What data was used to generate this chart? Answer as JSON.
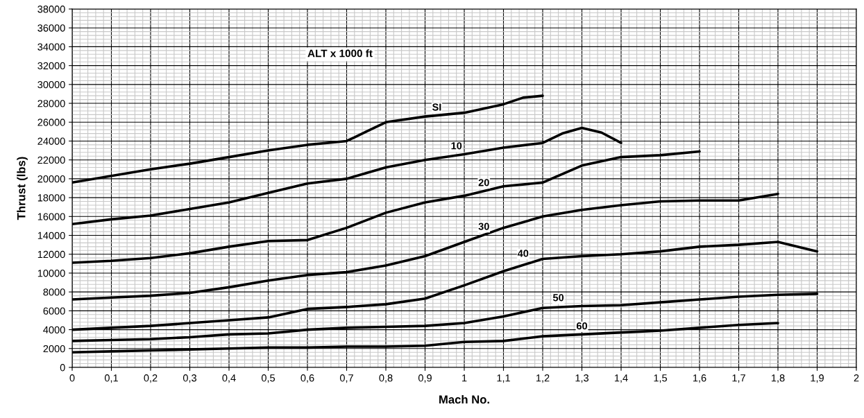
{
  "chart_data": {
    "type": "line",
    "xlabel": "Mach No.",
    "ylabel": "Thrust (lbs)",
    "xlim": [
      0,
      2
    ],
    "ylim": [
      0,
      38000
    ],
    "xticks": [
      0,
      {
        "value": 0.1,
        "label": "0,1"
      },
      {
        "value": 0.2,
        "label": "0,2"
      },
      {
        "value": 0.3,
        "label": "0,3"
      },
      {
        "value": 0.4,
        "label": "0,4"
      },
      {
        "value": 0.5,
        "label": "0,5"
      },
      {
        "value": 0.6,
        "label": "0,6"
      },
      {
        "value": 0.7,
        "label": "0,7"
      },
      {
        "value": 0.8,
        "label": "0,8"
      },
      {
        "value": 0.9,
        "label": "0,9"
      },
      1,
      {
        "value": 1.1,
        "label": "1,1"
      },
      {
        "value": 1.2,
        "label": "1,2"
      },
      {
        "value": 1.3,
        "label": "1,3"
      },
      {
        "value": 1.4,
        "label": "1,4"
      },
      {
        "value": 1.5,
        "label": "1,5"
      },
      {
        "value": 1.6,
        "label": "1,6"
      },
      {
        "value": 1.7,
        "label": "1,7"
      },
      {
        "value": 1.8,
        "label": "1,8"
      },
      {
        "value": 1.9,
        "label": "1,9"
      },
      2
    ],
    "yticks": [
      0,
      2000,
      4000,
      6000,
      8000,
      10000,
      12000,
      14000,
      16000,
      18000,
      20000,
      22000,
      24000,
      26000,
      28000,
      30000,
      32000,
      34000,
      36000,
      38000
    ],
    "grid": true,
    "marker": "none",
    "line_style": "solid",
    "series": [
      {
        "color": "#000000",
        "x": [
          0,
          0.1,
          0.2,
          0.3,
          0.4,
          0.5,
          0.6,
          0.7,
          0.75,
          0.8,
          0.9,
          1.0,
          1.1,
          1.15,
          1.2
        ],
        "values": [
          19600,
          20300,
          21000,
          21600,
          22300,
          23000,
          23600,
          24000,
          25000,
          26000,
          26600,
          27000,
          27900,
          28600,
          28800
        ]
      },
      {
        "color": "#000000",
        "x": [
          0,
          0.1,
          0.2,
          0.3,
          0.4,
          0.5,
          0.6,
          0.7,
          0.8,
          0.9,
          1.0,
          1.1,
          1.2,
          1.25,
          1.3,
          1.35,
          1.4
        ],
        "values": [
          15200,
          15700,
          16100,
          16800,
          17500,
          18500,
          19500,
          20000,
          21200,
          22000,
          22600,
          23300,
          23800,
          24800,
          25400,
          24900,
          23800
        ]
      },
      {
        "color": "#000000",
        "x": [
          0,
          0.1,
          0.2,
          0.3,
          0.4,
          0.5,
          0.6,
          0.7,
          0.8,
          0.9,
          1.0,
          1.1,
          1.2,
          1.3,
          1.4,
          1.5,
          1.6
        ],
        "values": [
          11100,
          11300,
          11600,
          12100,
          12800,
          13400,
          13500,
          14800,
          16400,
          17500,
          18200,
          19200,
          19600,
          21400,
          22300,
          22500,
          22900
        ]
      },
      {
        "color": "#000000",
        "x": [
          0,
          0.1,
          0.2,
          0.3,
          0.4,
          0.5,
          0.6,
          0.7,
          0.8,
          0.9,
          1.0,
          1.1,
          1.2,
          1.3,
          1.4,
          1.5,
          1.6,
          1.7,
          1.8
        ],
        "values": [
          7200,
          7400,
          7600,
          7900,
          8500,
          9200,
          9800,
          10100,
          10800,
          11800,
          13300,
          14800,
          16000,
          16700,
          17200,
          17600,
          17700,
          17700,
          18400
        ]
      },
      {
        "color": "#000000",
        "x": [
          0,
          0.1,
          0.2,
          0.3,
          0.4,
          0.5,
          0.6,
          0.7,
          0.8,
          0.9,
          1.0,
          1.1,
          1.2,
          1.3,
          1.4,
          1.5,
          1.6,
          1.7,
          1.8,
          1.9
        ],
        "values": [
          4000,
          4200,
          4400,
          4700,
          5000,
          5300,
          6200,
          6400,
          6700,
          7300,
          8700,
          10200,
          11500,
          11800,
          12000,
          12300,
          12800,
          13000,
          13300,
          12300
        ]
      },
      {
        "color": "#000000",
        "x": [
          0,
          0.1,
          0.2,
          0.3,
          0.4,
          0.5,
          0.6,
          0.7,
          0.8,
          0.9,
          1.0,
          1.1,
          1.2,
          1.3,
          1.4,
          1.5,
          1.6,
          1.7,
          1.8,
          1.9
        ],
        "values": [
          2800,
          2900,
          3000,
          3200,
          3500,
          3600,
          4000,
          4200,
          4300,
          4400,
          4700,
          5400,
          6300,
          6500,
          6600,
          6900,
          7200,
          7500,
          7700,
          7800
        ]
      },
      {
        "color": "#000000",
        "x": [
          0,
          0.1,
          0.2,
          0.3,
          0.4,
          0.5,
          0.6,
          0.7,
          0.8,
          0.9,
          1.0,
          1.1,
          1.2,
          1.3,
          1.4,
          1.5,
          1.6,
          1.7,
          1.8
        ],
        "values": [
          1600,
          1700,
          1800,
          1900,
          2000,
          2100,
          2100,
          2200,
          2200,
          2300,
          2700,
          2800,
          3300,
          3500,
          3700,
          3900,
          4200,
          4500,
          4700
        ]
      }
    ],
    "annotations": [
      "ALT x 1000 ft",
      {
        "text": "SI",
        "x": 0.93,
        "y": 26700
      },
      {
        "text": "10",
        "x": 0.98,
        "y": 22600
      },
      {
        "text": "20",
        "x": 1.05,
        "y": 18700
      },
      {
        "text": "30",
        "x": 1.05,
        "y": 14050
      },
      {
        "text": "40",
        "x": 1.15,
        "y": 11200
      },
      {
        "text": "50",
        "x": 1.24,
        "y": 6500
      },
      {
        "text": "60",
        "x": 1.3,
        "y": 3500
      }
    ]
  }
}
